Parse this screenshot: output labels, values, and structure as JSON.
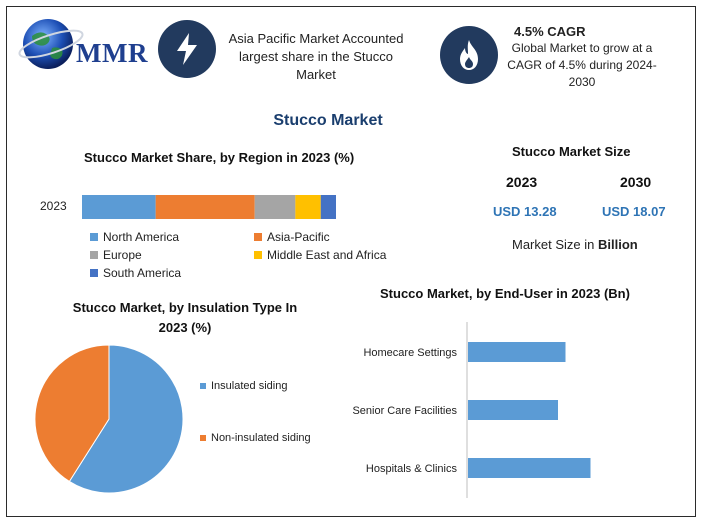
{
  "brand": {
    "name": "MMR"
  },
  "header": {
    "card1_text": "Asia Pacific Market Accounted largest share in the Stucco Market",
    "cagr_title": "4.5% CAGR",
    "cagr_desc": "Global Market to grow at a CAGR of 4.5% during 2024-2030"
  },
  "main_title": "Stucco Market",
  "market_size": {
    "title": "Stucco Market Size",
    "year1": "2023",
    "year2": "2030",
    "value1": "USD 13.28",
    "value2": "USD 18.07",
    "unit_prefix": "Market Size in",
    "unit_bold": "Billion"
  },
  "colors": {
    "blue": "#5b9bd5",
    "orange": "#ed7d31",
    "gray": "#a5a5a5",
    "yellow": "#ffc000",
    "darkblue": "#4472c4",
    "badge": "#223a5e"
  },
  "chart_data": [
    {
      "type": "bar",
      "orientation": "horizontal-stacked",
      "title": "Stucco Market Share, by Region in 2023 (%)",
      "categories": [
        "2023"
      ],
      "series": [
        {
          "name": "North America",
          "values": [
            29
          ],
          "color": "#5b9bd5"
        },
        {
          "name": "Asia-Pacific",
          "values": [
            39
          ],
          "color": "#ed7d31"
        },
        {
          "name": "Europe",
          "values": [
            16
          ],
          "color": "#a5a5a5"
        },
        {
          "name": "Middle East and Africa",
          "values": [
            10
          ],
          "color": "#ffc000"
        },
        {
          "name": "South America",
          "values": [
            6
          ],
          "color": "#4472c4"
        }
      ],
      "legend": "bottom"
    },
    {
      "type": "pie",
      "title": "Stucco Market, by Insulation Type In 2023 (%)",
      "labels": [
        "Insulated siding",
        "Non-insulated siding"
      ],
      "values": [
        59,
        41
      ],
      "colors": [
        "#5b9bd5",
        "#ed7d31"
      ],
      "legend": "right"
    },
    {
      "type": "bar",
      "orientation": "horizontal",
      "title": "Stucco Market, by End-User in 2023 (Bn)",
      "categories": [
        "Homecare Settings",
        "Senior Care Facilities",
        "Hospitals & Clinics"
      ],
      "values": [
        3.9,
        3.6,
        4.9
      ],
      "xlim": [
        0,
        8
      ],
      "color": "#5b9bd5"
    }
  ]
}
